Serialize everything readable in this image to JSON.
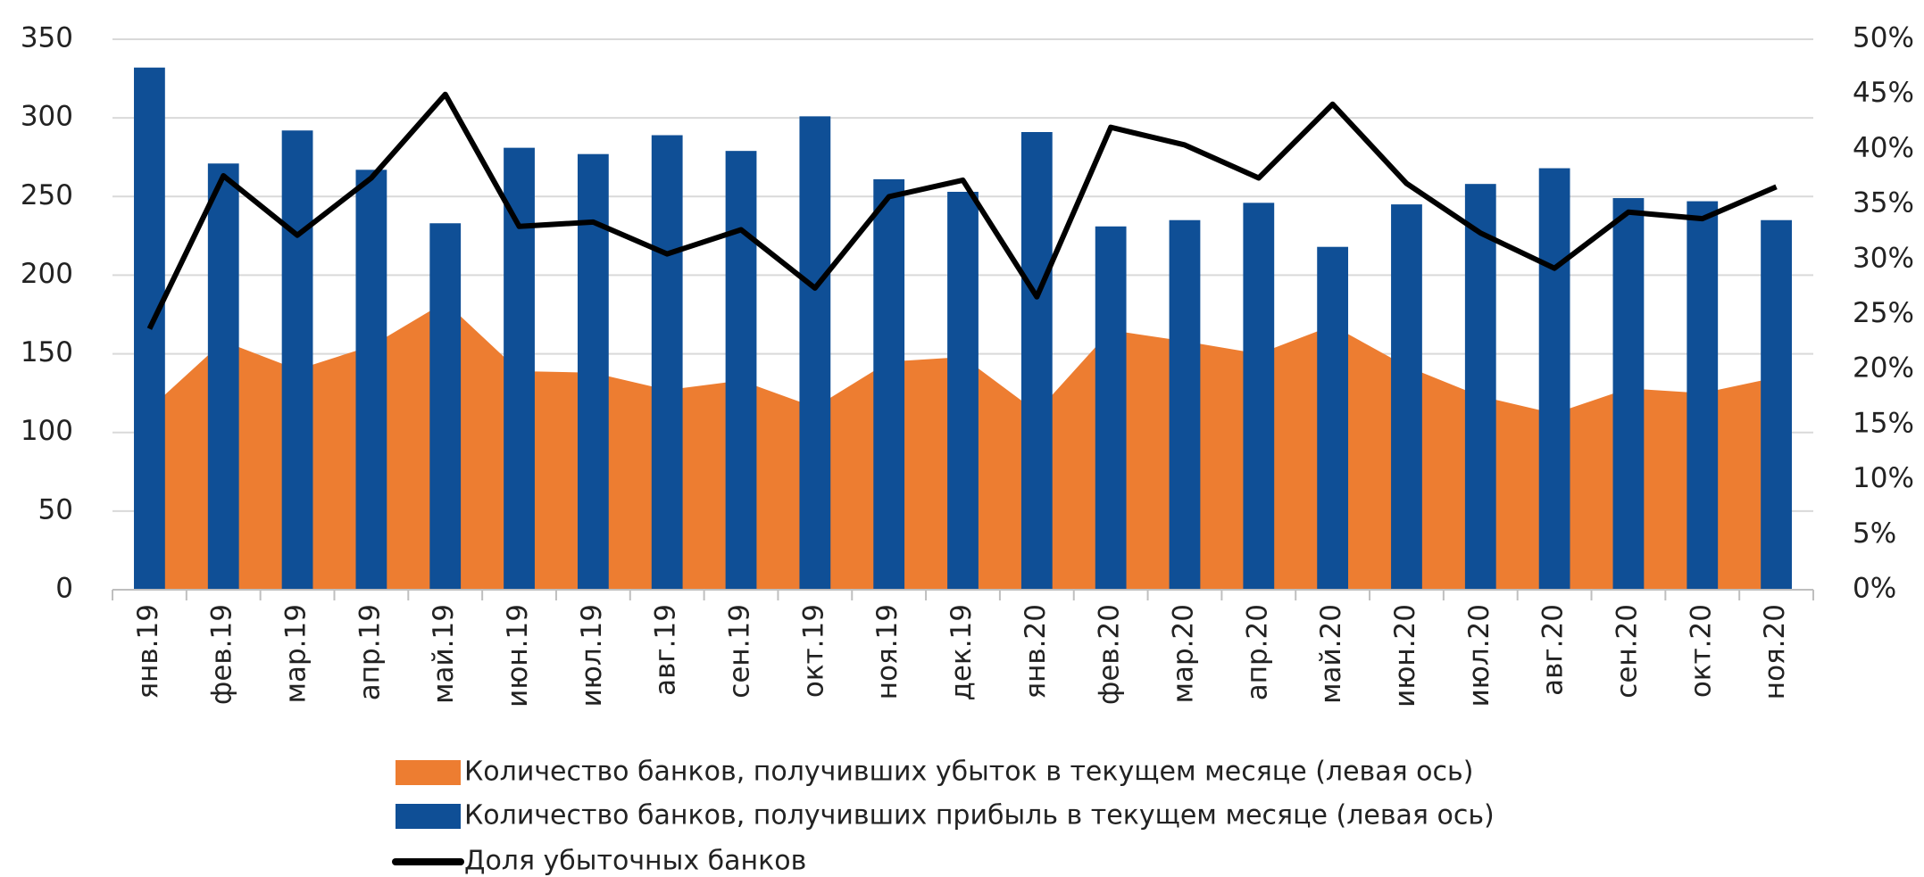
{
  "chart_data": {
    "type": "combo",
    "categories": [
      "янв.19",
      "фев.19",
      "мар.19",
      "апр.19",
      "май.19",
      "июн.19",
      "июл.19",
      "авг.19",
      "сен.19",
      "окт.19",
      "ноя.19",
      "дек.19",
      "янв.20",
      "фев.20",
      "мар.20",
      "апр.20",
      "май.20",
      "июн.20",
      "июл.20",
      "авг.20",
      "сен.20",
      "окт.20",
      "ноя.20"
    ],
    "series": [
      {
        "name": "Количество банков, получивших убыток в текущем месяце (левая ось)",
        "type": "area",
        "color": "#ed7d31",
        "values": [
          115,
          158,
          140,
          155,
          183,
          139,
          138,
          127,
          133,
          116,
          145,
          148,
          113,
          165,
          158,
          150,
          168,
          142,
          123,
          112,
          128,
          125,
          135
        ]
      },
      {
        "name": "Количество банков, получивших прибыль в текущем месяце (левая ось)",
        "type": "bar",
        "color": "#0f4f96",
        "values": [
          332,
          271,
          292,
          267,
          233,
          281,
          277,
          289,
          279,
          301,
          261,
          253,
          291,
          231,
          235,
          246,
          218,
          245,
          258,
          268,
          249,
          247,
          235
        ]
      },
      {
        "name": "Доля убыточных банков",
        "type": "line",
        "color": "#000000",
        "axis": "y2",
        "values": [
          23.7,
          37.6,
          32.2,
          37.4,
          45,
          33,
          33.4,
          30.5,
          32.7,
          27.4,
          35.7,
          37.2,
          26.6,
          42,
          40.4,
          37.4,
          44.1,
          36.9,
          32.4,
          29.2,
          34.3,
          33.7,
          36.6
        ]
      }
    ],
    "ylim": [
      0,
      350
    ],
    "yticks": [
      0,
      50,
      100,
      150,
      200,
      250,
      300,
      350
    ],
    "y2lim": [
      0,
      50
    ],
    "y2ticks": [
      {
        "value": 0,
        "label": "0%"
      },
      {
        "value": 5,
        "label": "5%"
      },
      {
        "value": 10,
        "label": "10%"
      },
      {
        "value": 15,
        "label": "15%"
      },
      {
        "value": 20,
        "label": "20%"
      },
      {
        "value": 25,
        "label": "25%"
      },
      {
        "value": 30,
        "label": "30%"
      },
      {
        "value": 35,
        "label": "35%"
      },
      {
        "value": 40,
        "label": "40%"
      },
      {
        "value": 45,
        "label": "45%"
      },
      {
        "value": 50,
        "label": "50%"
      }
    ],
    "grid": true
  }
}
